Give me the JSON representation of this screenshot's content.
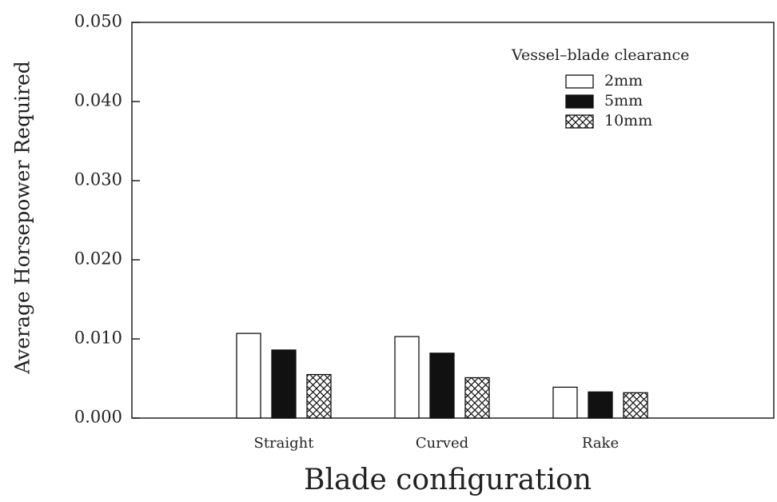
{
  "chart_data": {
    "type": "bar",
    "xlabel": "Blade configuration",
    "ylabel": "Average Horsepower Required",
    "legend_title": "Vessel–blade clearance",
    "legend_position": "upper right",
    "categories": [
      "Straight",
      "Curved",
      "Rake"
    ],
    "series": [
      {
        "name": "2mm",
        "color": "#ffffff",
        "values": [
          0.0107,
          0.0103,
          0.0039
        ]
      },
      {
        "name": "5mm",
        "color": "#111111",
        "values": [
          0.0086,
          0.0082,
          0.0033
        ]
      },
      {
        "name": "10mm",
        "color": "#ffffff",
        "hatch": "cross",
        "values": [
          0.0055,
          0.0051,
          0.0032
        ]
      }
    ],
    "ylim": [
      0,
      0.05
    ],
    "yticks": [
      {
        "value": 0,
        "label": "0.000"
      },
      {
        "value": 0.01,
        "label": "0.010"
      },
      {
        "value": 0.02,
        "label": "0.020"
      },
      {
        "value": 0.03,
        "label": "0.030"
      },
      {
        "value": 0.04,
        "label": "0.040"
      },
      {
        "value": 0.05,
        "label": "0.050"
      }
    ],
    "grid": false
  }
}
